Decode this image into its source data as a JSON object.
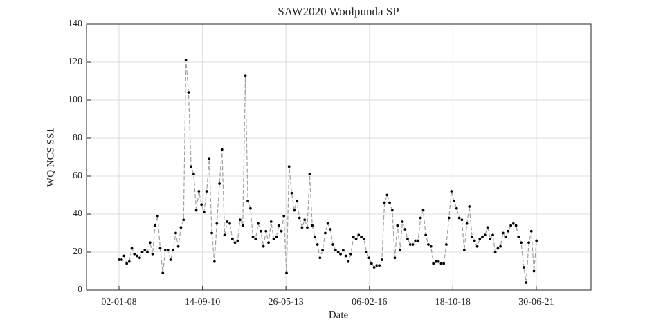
{
  "chart_data": {
    "type": "line",
    "title": "SAW2020 Woolpunda SP",
    "xlabel": "Date",
    "ylabel": "WQ NCS SS1",
    "x": [
      "2008-01-02",
      "2008-02-02",
      "2008-03-02",
      "2008-04-02",
      "2008-05-02",
      "2008-06-02",
      "2008-07-02",
      "2008-08-02",
      "2008-09-02",
      "2008-10-02",
      "2008-11-02",
      "2008-12-02",
      "2009-01-02",
      "2009-02-02",
      "2009-03-02",
      "2009-04-02",
      "2009-05-02",
      "2009-06-02",
      "2009-07-02",
      "2009-08-02",
      "2009-09-02",
      "2009-10-02",
      "2009-11-02",
      "2009-12-02",
      "2010-01-02",
      "2010-02-02",
      "2010-03-02",
      "2010-04-02",
      "2010-05-02",
      "2010-06-02",
      "2010-07-02",
      "2010-08-02",
      "2010-09-02",
      "2010-10-02",
      "2010-11-02",
      "2010-12-02",
      "2011-01-02",
      "2011-02-02",
      "2011-03-02",
      "2011-04-02",
      "2011-05-02",
      "2011-06-02",
      "2011-07-02",
      "2011-08-02",
      "2011-09-02",
      "2011-10-02",
      "2011-11-02",
      "2011-12-02",
      "2012-01-02",
      "2012-02-02",
      "2012-03-02",
      "2012-04-02",
      "2012-05-02",
      "2012-06-02",
      "2012-07-02",
      "2012-08-02",
      "2012-09-02",
      "2012-10-02",
      "2012-11-02",
      "2012-12-02",
      "2013-01-02",
      "2013-02-02",
      "2013-03-02",
      "2013-04-02",
      "2013-05-02",
      "2013-06-02",
      "2013-07-02",
      "2013-08-02",
      "2013-09-02",
      "2013-10-02",
      "2013-11-02",
      "2013-12-02",
      "2014-01-02",
      "2014-02-02",
      "2014-03-02",
      "2014-04-02",
      "2014-05-02",
      "2014-06-02",
      "2014-07-02",
      "2014-08-02",
      "2014-09-02",
      "2014-10-02",
      "2014-11-02",
      "2014-12-02",
      "2015-01-02",
      "2015-02-02",
      "2015-03-02",
      "2015-04-02",
      "2015-05-02",
      "2015-06-02",
      "2015-07-02",
      "2015-08-02",
      "2015-09-02",
      "2015-10-02",
      "2015-11-02",
      "2015-12-02",
      "2016-01-02",
      "2016-02-02",
      "2016-03-02",
      "2016-04-02",
      "2016-05-02",
      "2016-06-02",
      "2016-07-02",
      "2016-08-02",
      "2016-09-02",
      "2016-10-02",
      "2016-11-02",
      "2016-12-02",
      "2017-01-02",
      "2017-02-02",
      "2017-03-02",
      "2017-04-02",
      "2017-05-02",
      "2017-06-02",
      "2017-07-02",
      "2017-08-02",
      "2017-09-02",
      "2017-10-02",
      "2017-11-02",
      "2017-12-02",
      "2018-01-02",
      "2018-02-02",
      "2018-03-02",
      "2018-04-02",
      "2018-05-02",
      "2018-06-02",
      "2018-07-02",
      "2018-08-02",
      "2018-09-02",
      "2018-10-02",
      "2018-11-02",
      "2018-12-02",
      "2019-01-02",
      "2019-02-02",
      "2019-03-02",
      "2019-04-02",
      "2019-05-02",
      "2019-06-02",
      "2019-07-02",
      "2019-08-02",
      "2019-09-02",
      "2019-10-02",
      "2019-11-02",
      "2019-12-02",
      "2020-01-02",
      "2020-02-02",
      "2020-03-02",
      "2020-04-02",
      "2020-05-02",
      "2020-06-02",
      "2020-07-02",
      "2020-08-02",
      "2020-09-02",
      "2020-10-02",
      "2020-11-02",
      "2020-12-02",
      "2021-01-02",
      "2021-02-02",
      "2021-03-02",
      "2021-04-02",
      "2021-05-02",
      "2021-06-02",
      "2021-07-02"
    ],
    "values": [
      16,
      16,
      18,
      14,
      15,
      22,
      19,
      18,
      17,
      20,
      21,
      20,
      25,
      19,
      34,
      39,
      22,
      9,
      21,
      21,
      16,
      21,
      30,
      23,
      33,
      37,
      121,
      104,
      65,
      61,
      42,
      52,
      45,
      41,
      52,
      69,
      30,
      15,
      35,
      56,
      74,
      29,
      36,
      35,
      27,
      25,
      26,
      37,
      34,
      113,
      47,
      43,
      28,
      27,
      35,
      31,
      23,
      31,
      25,
      36,
      27,
      28,
      34,
      31,
      39,
      9,
      65,
      51,
      42,
      47,
      38,
      33,
      37,
      33,
      61,
      34,
      28,
      24,
      17,
      21,
      30,
      35,
      32,
      24,
      21,
      20,
      19,
      21,
      18,
      15,
      19,
      28,
      27,
      29,
      28,
      27,
      20,
      17,
      14,
      12,
      13,
      13,
      16,
      46,
      50,
      46,
      42,
      17,
      34,
      21,
      36,
      32,
      27,
      24,
      24,
      26,
      26,
      38,
      42,
      29,
      24,
      23,
      14,
      15,
      15,
      14,
      14,
      24,
      38,
      52,
      47,
      43,
      38,
      37,
      21,
      35,
      44,
      28,
      26,
      23,
      27,
      28,
      29,
      33,
      27,
      29,
      20,
      22,
      23,
      30,
      28,
      31,
      34,
      35,
      34,
      28,
      25,
      12,
      4,
      25,
      31,
      10,
      26
    ],
    "color": "#000000",
    "line_color": "#a0a0a0",
    "xlim": [
      "2006-12-14",
      "2023-04-07"
    ],
    "xticks": [
      {
        "value": "2008-01-02",
        "label": "02-01-08"
      },
      {
        "value": "2010-09-14",
        "label": "14-09-10"
      },
      {
        "value": "2013-05-26",
        "label": "26-05-13"
      },
      {
        "value": "2016-02-06",
        "label": "06-02-16"
      },
      {
        "value": "2018-10-18",
        "label": "18-10-18"
      },
      {
        "value": "2021-06-30",
        "label": "30-06-21"
      }
    ],
    "ylim": [
      0,
      140
    ],
    "yticks": [
      0,
      20,
      40,
      60,
      80,
      100,
      120,
      140
    ],
    "grid": true
  }
}
